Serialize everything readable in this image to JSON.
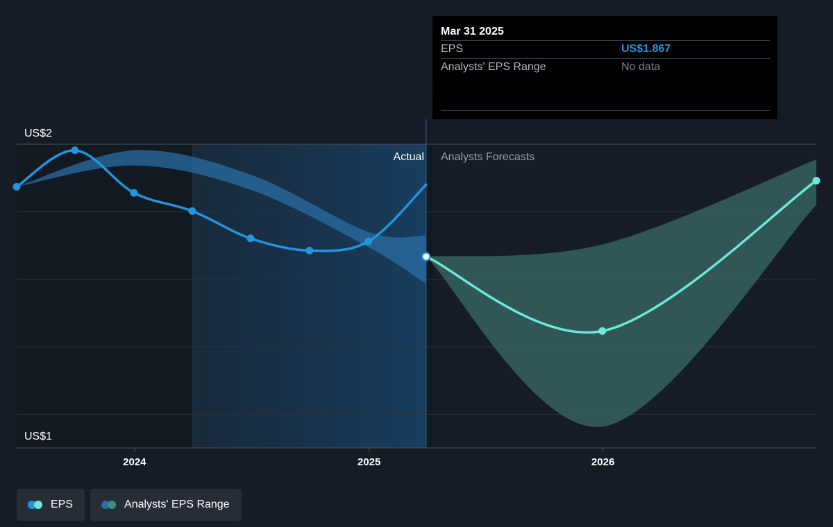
{
  "tooltip": {
    "date": "Mar 31 2025",
    "rows": [
      {
        "label": "EPS",
        "value": "US$1.867"
      },
      {
        "label": "Analysts' EPS Range",
        "value": "No data"
      }
    ]
  },
  "legend": [
    {
      "label": "EPS",
      "icon": "eps-dots-icon",
      "colors": [
        "#2394df",
        "#6ce8d6"
      ]
    },
    {
      "label": "Analysts' EPS Range",
      "icon": "range-dots-icon",
      "colors": [
        "#2a6ea4",
        "#3c8f86"
      ]
    }
  ],
  "colors": {
    "background": "#161c25",
    "actual": "#2394df",
    "forecast": "#6ce8d6",
    "actual_range": "#2a6ea4",
    "forecast_range": "#3c6f69"
  },
  "chart_data": {
    "type": "line",
    "y_axis": {
      "labels": [
        "US$2",
        "US$1"
      ],
      "ylim": [
        1.0,
        2.0
      ]
    },
    "x_axis": {
      "ticks": [
        {
          "label": "2024",
          "date": "2024-01-01"
        },
        {
          "label": "2025",
          "date": "2025-01-01"
        },
        {
          "label": "2026",
          "date": "2026-01-01"
        }
      ],
      "xlim": [
        "2023-07-01",
        "2026-11-30"
      ]
    },
    "region_labels": {
      "actual": "Actual",
      "forecast": "Analysts Forecasts"
    },
    "highlight": {
      "start": "2024-04-01",
      "end": "2025-03-31"
    },
    "grid": true,
    "series": [
      {
        "name": "EPS",
        "role": "actual",
        "points": [
          {
            "date": "2023-07-01",
            "value": 1.86
          },
          {
            "date": "2023-09-30",
            "value": 1.98
          },
          {
            "date": "2023-12-31",
            "value": 1.84
          },
          {
            "date": "2024-03-31",
            "value": 1.78
          },
          {
            "date": "2024-06-30",
            "value": 1.69
          },
          {
            "date": "2024-09-30",
            "value": 1.65
          },
          {
            "date": "2024-12-31",
            "value": 1.68
          },
          {
            "date": "2025-03-31",
            "value": 1.867
          }
        ]
      },
      {
        "name": "EPS",
        "role": "forecast",
        "points": [
          {
            "date": "2025-03-31",
            "value": 1.63
          },
          {
            "date": "2025-12-31",
            "value": 1.385
          },
          {
            "date": "2026-11-30",
            "value": 1.88
          }
        ]
      }
    ],
    "ranges": [
      {
        "name": "Analysts' EPS Range",
        "role": "actual",
        "upper": [
          {
            "date": "2023-07-01",
            "value": 1.86
          },
          {
            "date": "2023-12-31",
            "value": 1.98
          },
          {
            "date": "2024-06-30",
            "value": 1.9
          },
          {
            "date": "2025-01-01",
            "value": 1.71
          },
          {
            "date": "2025-03-31",
            "value": 1.7
          }
        ],
        "lower": [
          {
            "date": "2023-07-01",
            "value": 1.86
          },
          {
            "date": "2023-12-31",
            "value": 1.93
          },
          {
            "date": "2024-06-30",
            "value": 1.85
          },
          {
            "date": "2025-01-01",
            "value": 1.66
          },
          {
            "date": "2025-03-31",
            "value": 1.54
          }
        ]
      },
      {
        "name": "Analysts' EPS Range",
        "role": "forecast",
        "upper": [
          {
            "date": "2025-03-31",
            "value": 1.63
          },
          {
            "date": "2025-12-31",
            "value": 1.67
          },
          {
            "date": "2026-11-30",
            "value": 1.95
          }
        ],
        "lower": [
          {
            "date": "2025-03-31",
            "value": 1.63
          },
          {
            "date": "2025-12-31",
            "value": 1.07
          },
          {
            "date": "2026-11-30",
            "value": 1.8
          }
        ]
      }
    ]
  }
}
